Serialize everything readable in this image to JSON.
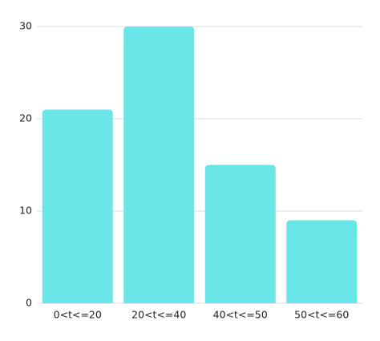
{
  "chart_data": {
    "type": "bar",
    "categories": [
      "0<t<=20",
      "20<t<=40",
      "40<t<=50",
      "50<t<=60"
    ],
    "values": [
      21,
      30,
      15,
      9
    ],
    "color": "#6ae5e8",
    "ylim": [
      0,
      30
    ],
    "yticks": [
      0,
      10,
      20,
      30
    ],
    "grid": true
  }
}
